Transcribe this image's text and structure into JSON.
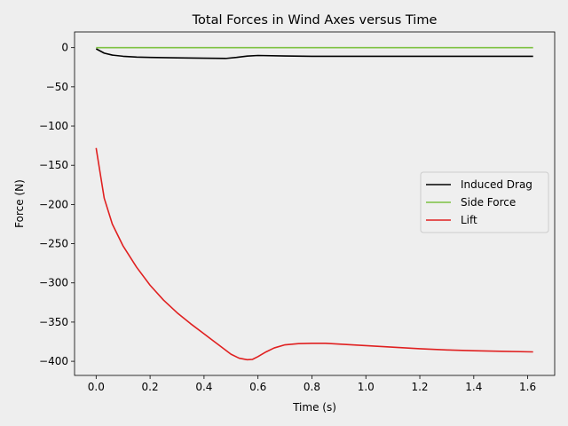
{
  "chart_data": {
    "type": "line",
    "title": "Total Forces in Wind Axes versus Time",
    "xlabel": "Time (s)",
    "ylabel": "Force (N)",
    "xlim": [
      -0.08,
      1.7
    ],
    "ylim": [
      -418,
      20
    ],
    "x_ticks": [
      0.0,
      0.2,
      0.4,
      0.6,
      0.8,
      1.0,
      1.2,
      1.4,
      1.6
    ],
    "x_tick_labels": [
      "0.0",
      "0.2",
      "0.4",
      "0.6",
      "0.8",
      "1.0",
      "1.2",
      "1.4",
      "1.6"
    ],
    "y_ticks": [
      0,
      -50,
      -100,
      -150,
      -200,
      -250,
      -300,
      -350,
      -400
    ],
    "y_tick_labels": [
      "0",
      "−50",
      "−100",
      "−150",
      "−200",
      "−250",
      "−300",
      "−350",
      "−400"
    ],
    "grid": false,
    "legend_position": "center-right",
    "series": [
      {
        "name": "Induced Drag",
        "color": "#000000",
        "x": [
          0.0,
          0.03,
          0.06,
          0.1,
          0.15,
          0.2,
          0.3,
          0.4,
          0.48,
          0.52,
          0.56,
          0.6,
          0.7,
          0.8,
          1.0,
          1.2,
          1.4,
          1.62
        ],
        "y": [
          -1.5,
          -7,
          -9.5,
          -11,
          -12,
          -12.5,
          -13,
          -13.5,
          -13.8,
          -12.5,
          -10.8,
          -10,
          -10.6,
          -11,
          -11,
          -11,
          -11,
          -11
        ]
      },
      {
        "name": "Side Force",
        "color": "#7dc242",
        "x": [
          0.0,
          1.62
        ],
        "y": [
          0,
          0
        ]
      },
      {
        "name": "Lift",
        "color": "#e02020",
        "x": [
          0.0,
          0.03,
          0.06,
          0.1,
          0.15,
          0.2,
          0.25,
          0.3,
          0.35,
          0.4,
          0.45,
          0.5,
          0.53,
          0.56,
          0.58,
          0.6,
          0.63,
          0.66,
          0.7,
          0.75,
          0.8,
          0.85,
          0.9,
          1.0,
          1.1,
          1.2,
          1.3,
          1.4,
          1.5,
          1.62
        ],
        "y": [
          -128,
          -192,
          -225,
          -253,
          -280,
          -303,
          -322,
          -338,
          -352,
          -365,
          -378,
          -391,
          -396,
          -398,
          -397.5,
          -394,
          -388,
          -383,
          -379,
          -377.5,
          -377,
          -377,
          -378,
          -380,
          -382,
          -384,
          -385.5,
          -386.5,
          -387.2,
          -388
        ]
      }
    ]
  }
}
